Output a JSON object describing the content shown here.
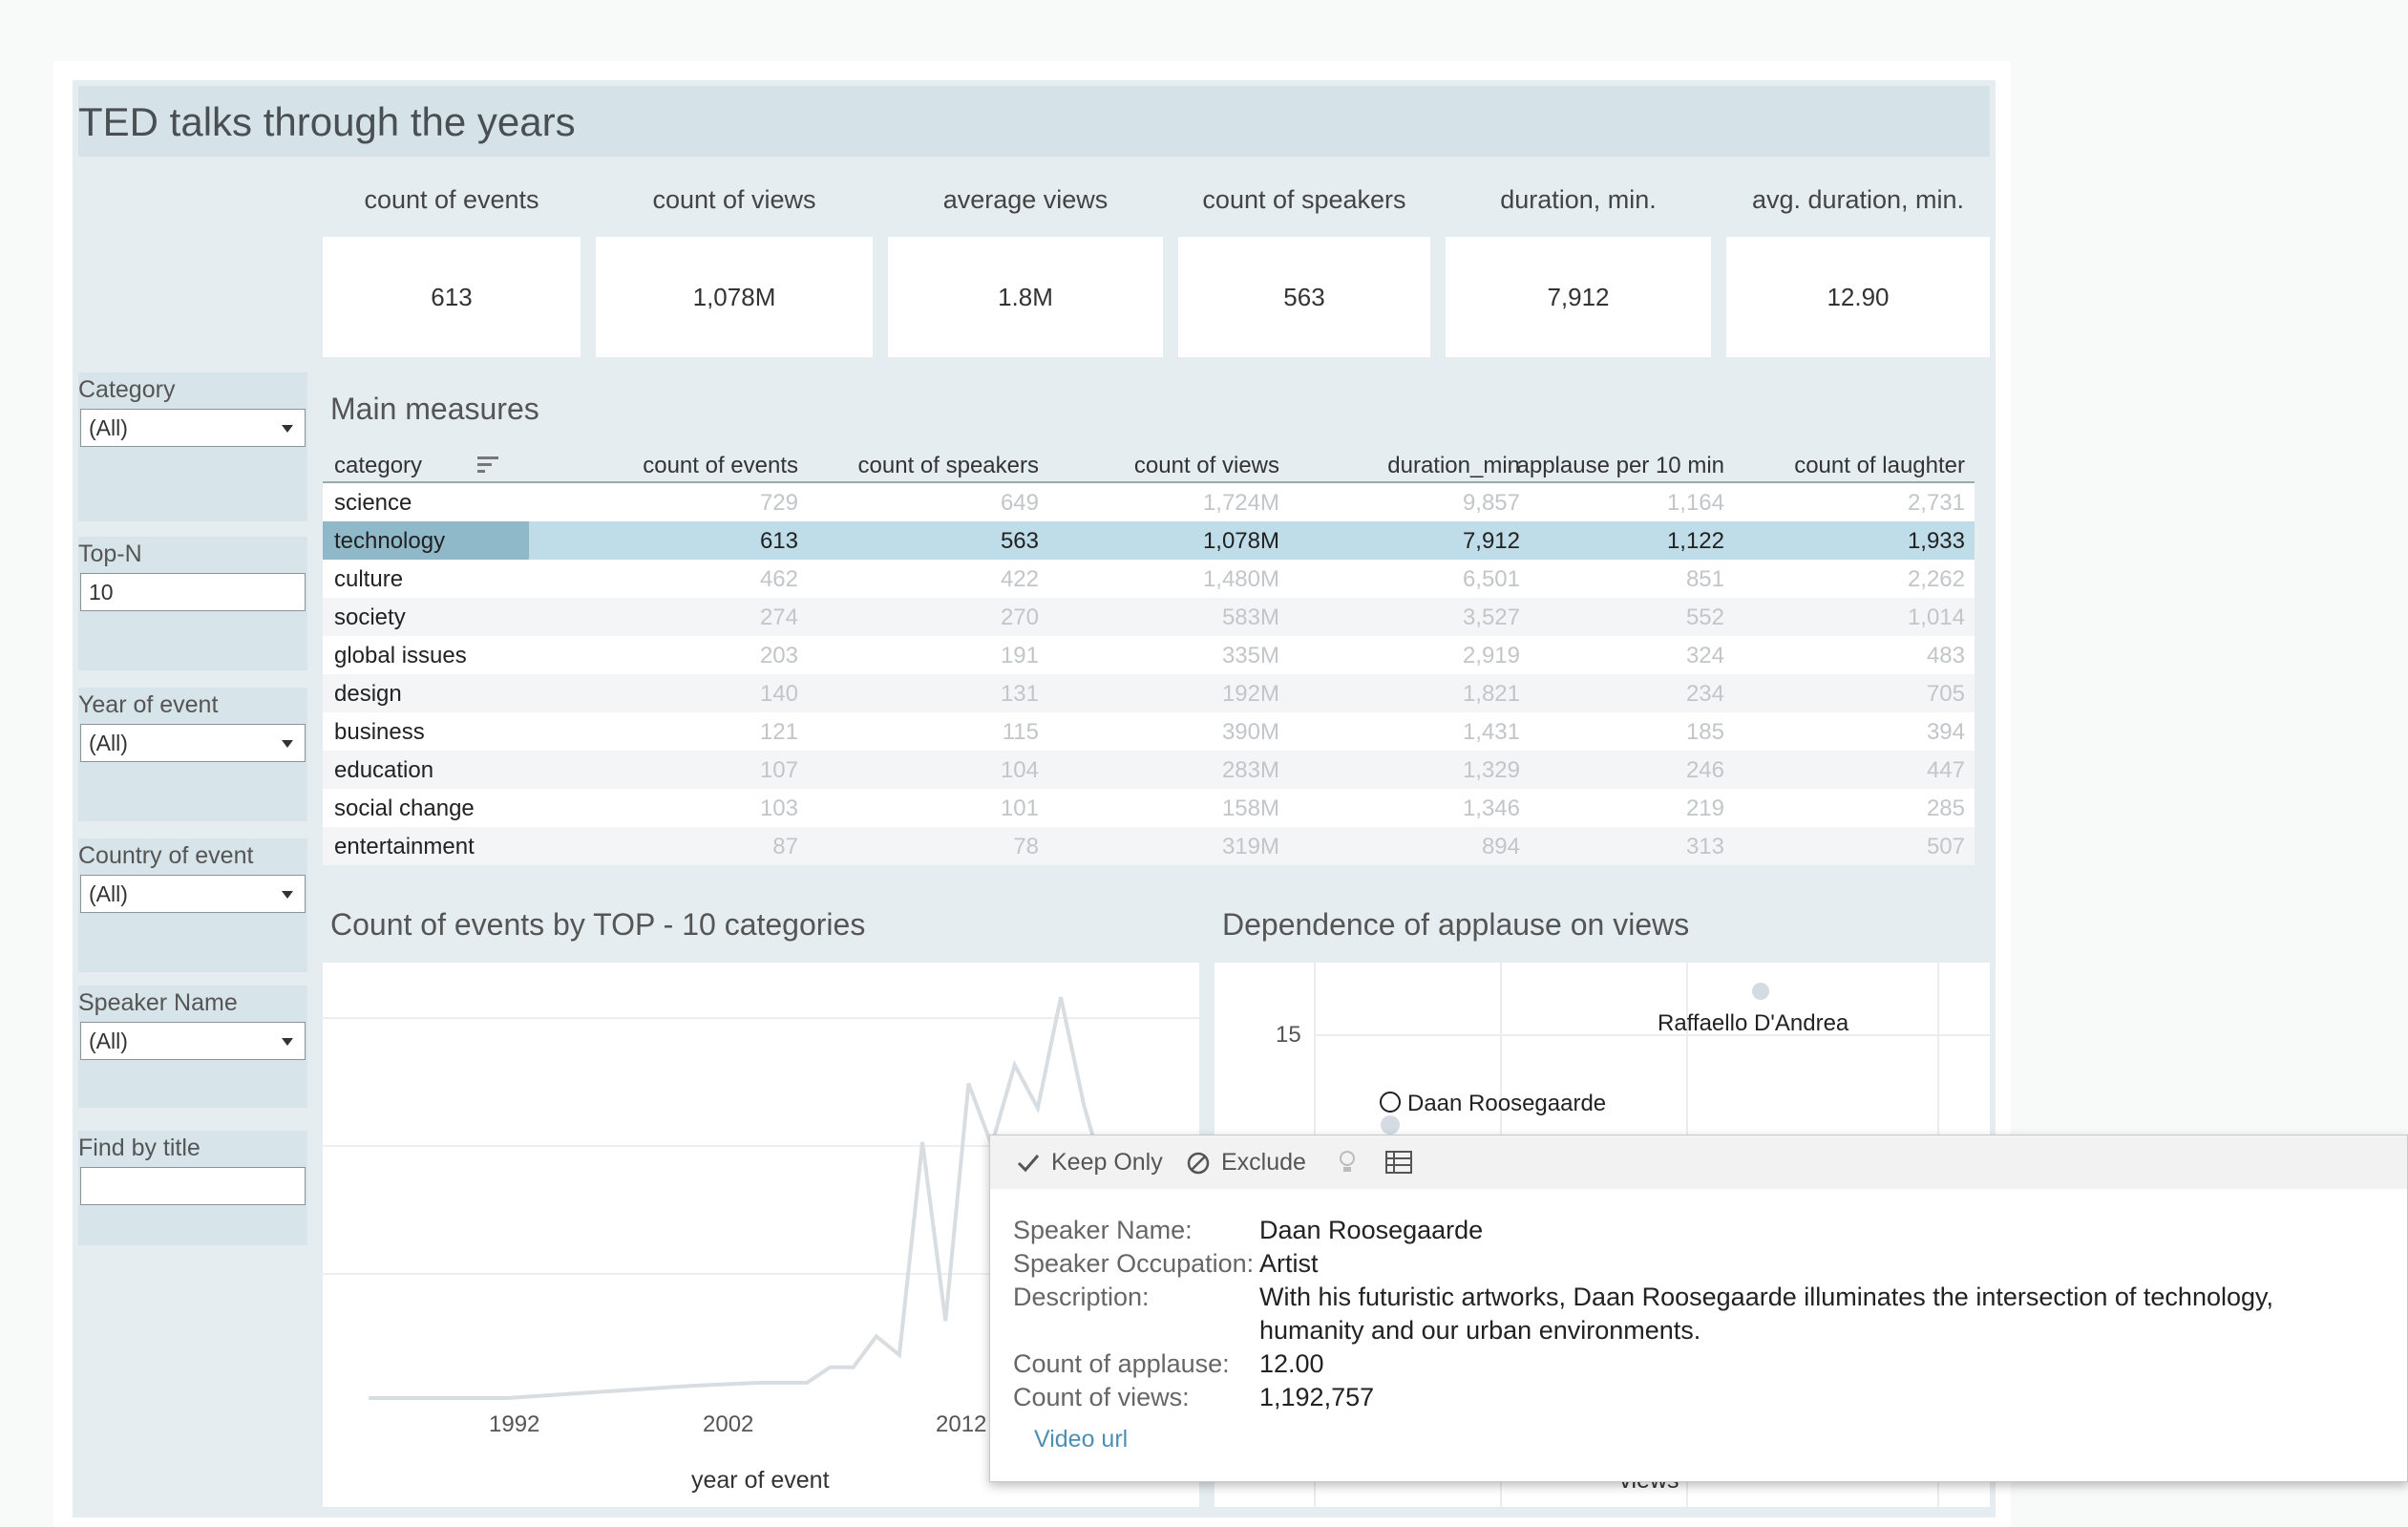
{
  "title": "TED talks through the years",
  "kpis": [
    {
      "label": "count of events",
      "value": "613"
    },
    {
      "label": "count of views",
      "value": "1,078M"
    },
    {
      "label": "average views",
      "value": "1.8M"
    },
    {
      "label": "count of speakers",
      "value": "563"
    },
    {
      "label": "duration, min.",
      "value": "7,912"
    },
    {
      "label": "avg. duration, min.",
      "value": "12.90"
    }
  ],
  "filters": {
    "category": {
      "label": "Category",
      "value": "(All)"
    },
    "topn": {
      "label": "Top-N",
      "value": "10"
    },
    "year": {
      "label": "Year of event",
      "value": "(All)"
    },
    "country": {
      "label": "Country of event",
      "value": "(All)"
    },
    "speaker": {
      "label": "Speaker Name",
      "value": "(All)"
    },
    "find": {
      "label": "Find by title",
      "value": ""
    }
  },
  "table": {
    "title": "Main measures",
    "columns": [
      "category",
      "count of events",
      "count of speakers",
      "count of views",
      "duration_min",
      "applause per 10 min",
      "count of laughter"
    ],
    "rows": [
      [
        "science",
        "729",
        "649",
        "1,724M",
        "9,857",
        "1,164",
        "2,731"
      ],
      [
        "technology",
        "613",
        "563",
        "1,078M",
        "7,912",
        "1,122",
        "1,933"
      ],
      [
        "culture",
        "462",
        "422",
        "1,480M",
        "6,501",
        "851",
        "2,262"
      ],
      [
        "society",
        "274",
        "270",
        "583M",
        "3,527",
        "552",
        "1,014"
      ],
      [
        "global issues",
        "203",
        "191",
        "335M",
        "2,919",
        "324",
        "483"
      ],
      [
        "design",
        "140",
        "131",
        "192M",
        "1,821",
        "234",
        "705"
      ],
      [
        "business",
        "121",
        "115",
        "390M",
        "1,431",
        "185",
        "394"
      ],
      [
        "education",
        "107",
        "104",
        "283M",
        "1,329",
        "246",
        "447"
      ],
      [
        "social change",
        "103",
        "101",
        "158M",
        "1,346",
        "219",
        "285"
      ],
      [
        "entertainment",
        "87",
        "78",
        "319M",
        "894",
        "313",
        "507"
      ]
    ],
    "selected_row": 1
  },
  "line_chart": {
    "title": "Count of events by TOP - 10 categories",
    "xlabel": "year of event",
    "xticks": [
      "1992",
      "2002",
      "2012"
    ]
  },
  "scatter_chart": {
    "title": "Dependence of applause on views",
    "xlabel": "views",
    "ytick": "15",
    "point_labels": [
      "Raffaello D'Andrea",
      "Daan Roosegaarde"
    ]
  },
  "chart_data": {
    "type": "line",
    "title": "Count of events by TOP - 10 categories",
    "xlabel": "year of event",
    "ylabel": "",
    "x": [
      1984,
      1990,
      1994,
      1998,
      2001,
      2003,
      2004,
      2005,
      2006,
      2007,
      2008,
      2009,
      2010,
      2011,
      2012,
      2013,
      2014,
      2015,
      2016,
      2017
    ],
    "values": [
      0,
      0,
      2,
      4,
      5,
      5,
      10,
      10,
      20,
      14,
      83,
      25,
      102,
      82,
      108,
      94,
      130,
      95,
      69,
      85
    ],
    "xlim": [
      1982,
      2020
    ],
    "ylim": [
      0,
      135
    ],
    "color": "#d8dde1"
  },
  "tooltip": {
    "actions": {
      "keep": "Keep Only",
      "exclude": "Exclude"
    },
    "fields": [
      {
        "key": "Speaker Name:",
        "value": "Daan Roosegaarde"
      },
      {
        "key": "Speaker Occupation:",
        "value": "Artist"
      },
      {
        "key": "Description:",
        "value": "With his futuristic artworks, Daan Roosegaarde illuminates the intersection of technology,"
      },
      {
        "key": "",
        "value": "humanity and our urban environments."
      },
      {
        "key": "Count of applause:",
        "value": "12.00"
      },
      {
        "key": "Count of views:",
        "value": "1,192,757"
      }
    ],
    "link": "Video url"
  },
  "colors": {
    "accent": "#4b8fb5",
    "selected": "#bfdde9",
    "panel": "#e5edf0"
  }
}
